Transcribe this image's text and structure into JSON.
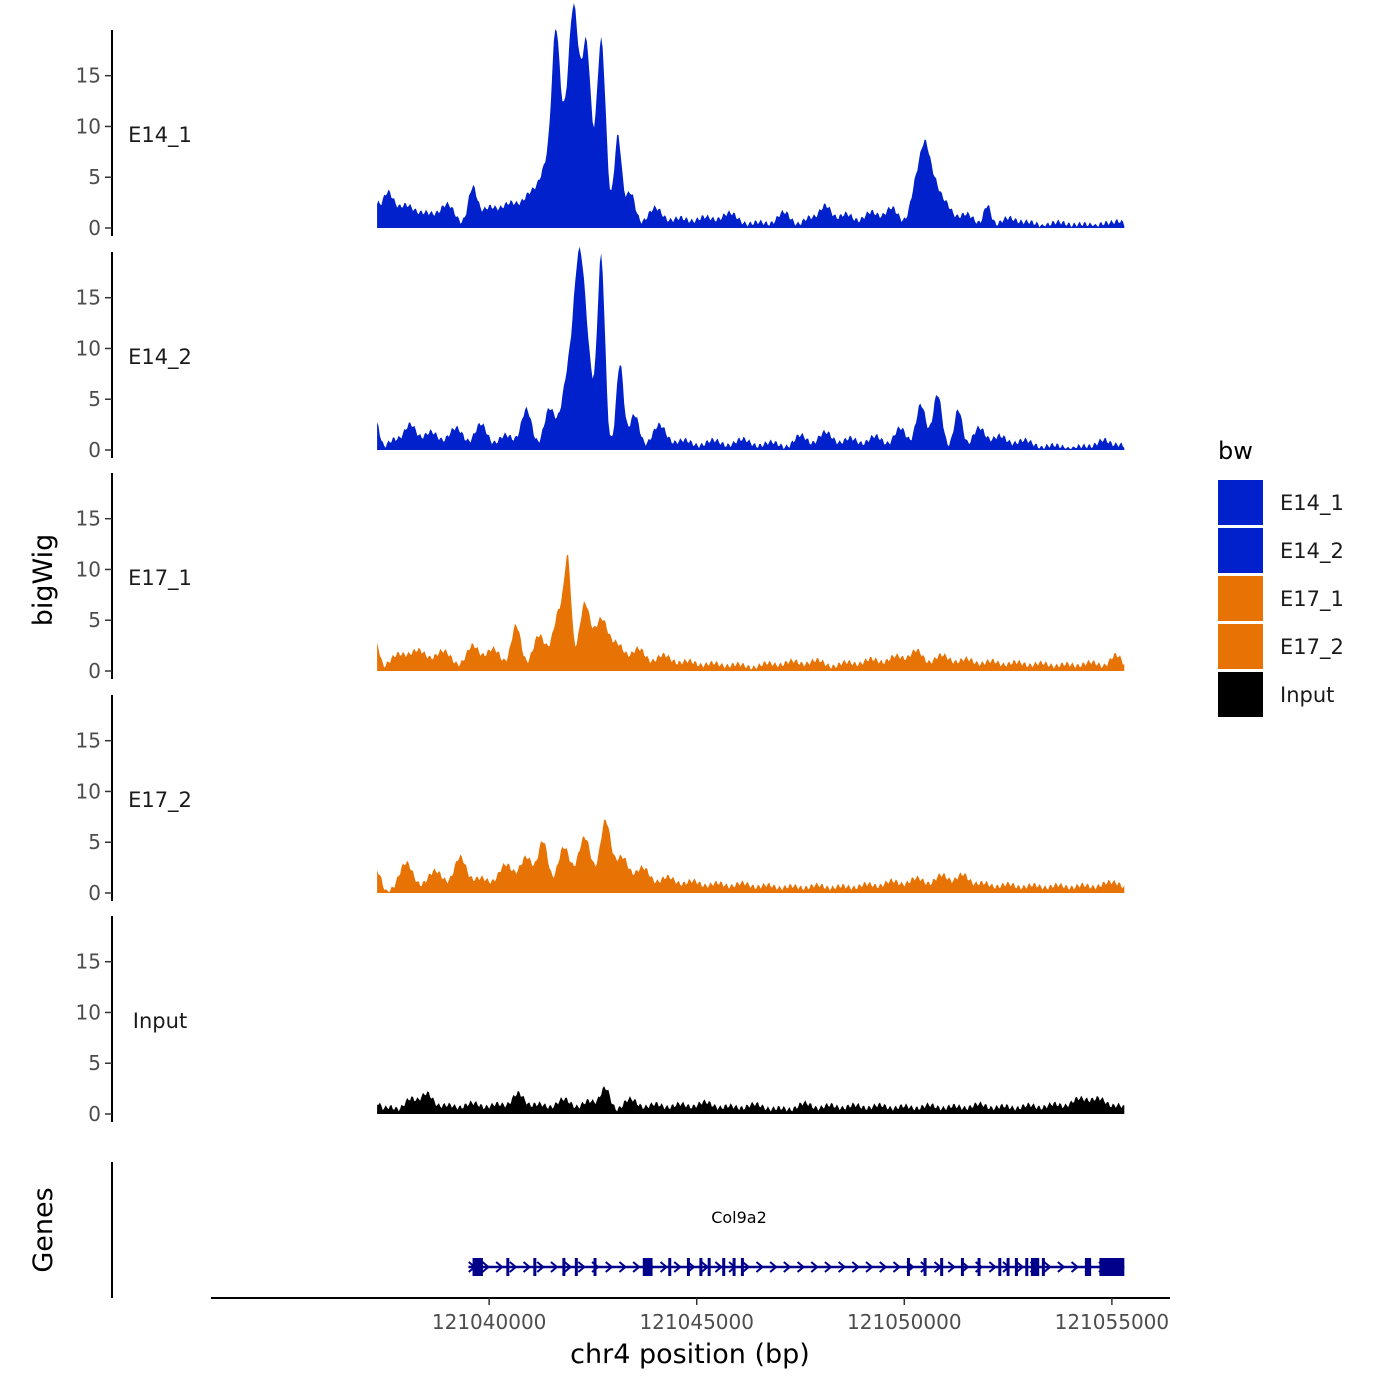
{
  "chart_data": {
    "type": "area",
    "ylabel": "bigWig",
    "xlabel": "chr4 position (bp)",
    "ylim": [
      0,
      19.5
    ],
    "xlim": [
      121033300,
      121056400
    ],
    "y_ticks": [
      "0",
      "5",
      "10",
      "15"
    ],
    "x_ticks": [
      "121040000",
      "121045000",
      "121050000",
      "121055000"
    ],
    "x_tick_values": [
      121040000,
      121045000,
      121050000,
      121055000
    ],
    "track_start": 121037300,
    "track_end": 121055300,
    "legend": {
      "title": "bw",
      "entries": [
        {
          "label": "E14_1",
          "color": "#0021CC"
        },
        {
          "label": "E14_2",
          "color": "#0021CC"
        },
        {
          "label": "E17_1",
          "color": "#E87305"
        },
        {
          "label": "E17_2",
          "color": "#E87305"
        },
        {
          "label": "Input",
          "color": "#000000"
        }
      ]
    },
    "series": [
      {
        "name": "E14_1",
        "color": "#0021CC",
        "peaks": [
          [
            121037300,
            1.5,
            60
          ],
          [
            121037550,
            3.4,
            150
          ],
          [
            121038000,
            2.2,
            200
          ],
          [
            121038500,
            1.4,
            200
          ],
          [
            121039000,
            2.3,
            180
          ],
          [
            121039600,
            3.8,
            110
          ],
          [
            121040000,
            2.0,
            200
          ],
          [
            121040500,
            2.3,
            200
          ],
          [
            121041000,
            3.2,
            200
          ],
          [
            121041400,
            5.5,
            170
          ],
          [
            121041700,
            7,
            150
          ],
          [
            121042000,
            8.5,
            160
          ],
          [
            121041600,
            11,
            90
          ],
          [
            121042050,
            13,
            120
          ],
          [
            121042350,
            17,
            110
          ],
          [
            121042700,
            18.5,
            110
          ],
          [
            121043100,
            9,
            90
          ],
          [
            121043400,
            3.5,
            120
          ],
          [
            121044000,
            2.0,
            180
          ],
          [
            121044600,
            1.0,
            200
          ],
          [
            121045200,
            1.1,
            200
          ],
          [
            121045800,
            1.5,
            200
          ],
          [
            121046500,
            0.6,
            200
          ],
          [
            121047100,
            1.6,
            160
          ],
          [
            121047700,
            1.0,
            150
          ],
          [
            121048100,
            2.2,
            150
          ],
          [
            121048600,
            1.4,
            180
          ],
          [
            121049200,
            1.6,
            180
          ],
          [
            121049700,
            2.0,
            160
          ],
          [
            121050300,
            4.5,
            140
          ],
          [
            121050500,
            5.5,
            110
          ],
          [
            121050700,
            4.0,
            140
          ],
          [
            121051000,
            2.2,
            160
          ],
          [
            121051500,
            1.4,
            180
          ],
          [
            121052000,
            2.2,
            90
          ],
          [
            121052500,
            1.0,
            180
          ],
          [
            121053000,
            0.6,
            200
          ],
          [
            121053700,
            0.6,
            200
          ],
          [
            121054300,
            0.4,
            200
          ],
          [
            121054900,
            0.5,
            200
          ],
          [
            121055200,
            0.5,
            120
          ]
        ]
      },
      {
        "name": "E14_2",
        "color": "#0021CC",
        "peaks": [
          [
            121037300,
            2.5,
            70
          ],
          [
            121037700,
            1.0,
            150
          ],
          [
            121038100,
            2.5,
            150
          ],
          [
            121038600,
            1.8,
            180
          ],
          [
            121039200,
            2.2,
            180
          ],
          [
            121039800,
            2.6,
            150
          ],
          [
            121040400,
            1.5,
            180
          ],
          [
            121040900,
            4.0,
            130
          ],
          [
            121041450,
            4.0,
            130
          ],
          [
            121041900,
            7,
            160
          ],
          [
            121042300,
            11,
            170
          ],
          [
            121042150,
            10,
            120
          ],
          [
            121042700,
            18.5,
            90
          ],
          [
            121043150,
            8.5,
            90
          ],
          [
            121043500,
            3.5,
            120
          ],
          [
            121044100,
            2.5,
            170
          ],
          [
            121044700,
            1.0,
            200
          ],
          [
            121045400,
            1.0,
            200
          ],
          [
            121046100,
            1.1,
            200
          ],
          [
            121046800,
            0.8,
            200
          ],
          [
            121047500,
            1.5,
            160
          ],
          [
            121048100,
            1.8,
            180
          ],
          [
            121048700,
            1.2,
            180
          ],
          [
            121049300,
            1.4,
            180
          ],
          [
            121049900,
            2.2,
            150
          ],
          [
            121050400,
            4.5,
            120
          ],
          [
            121050800,
            5.5,
            110
          ],
          [
            121051300,
            4.0,
            100
          ],
          [
            121051800,
            2.2,
            150
          ],
          [
            121052300,
            1.4,
            180
          ],
          [
            121052900,
            1.0,
            200
          ],
          [
            121053600,
            0.5,
            200
          ],
          [
            121054300,
            0.4,
            200
          ],
          [
            121054800,
            1.0,
            150
          ],
          [
            121055200,
            0.5,
            150
          ]
        ]
      },
      {
        "name": "E17_1",
        "color": "#E87305",
        "peaks": [
          [
            121037300,
            2.5,
            70
          ],
          [
            121037800,
            1.6,
            200
          ],
          [
            121038300,
            2.0,
            200
          ],
          [
            121038900,
            2.0,
            200
          ],
          [
            121039600,
            2.5,
            160
          ],
          [
            121040100,
            2.2,
            180
          ],
          [
            121040650,
            4.5,
            120
          ],
          [
            121041200,
            3.5,
            150
          ],
          [
            121041700,
            6.0,
            160
          ],
          [
            121041900,
            8.5,
            80
          ],
          [
            121042300,
            6.5,
            130
          ],
          [
            121042700,
            5.0,
            160
          ],
          [
            121043100,
            2.5,
            170
          ],
          [
            121043600,
            2.2,
            170
          ],
          [
            121044200,
            1.6,
            200
          ],
          [
            121044800,
            1.0,
            200
          ],
          [
            121045400,
            0.8,
            200
          ],
          [
            121046000,
            0.7,
            200
          ],
          [
            121046700,
            0.8,
            200
          ],
          [
            121047300,
            1.0,
            200
          ],
          [
            121047900,
            1.1,
            200
          ],
          [
            121048600,
            0.9,
            200
          ],
          [
            121049200,
            1.2,
            200
          ],
          [
            121049800,
            1.5,
            200
          ],
          [
            121050300,
            2.0,
            160
          ],
          [
            121050900,
            1.6,
            200
          ],
          [
            121051500,
            1.2,
            200
          ],
          [
            121052100,
            1.0,
            200
          ],
          [
            121052700,
            0.9,
            200
          ],
          [
            121053300,
            0.8,
            200
          ],
          [
            121053900,
            0.7,
            200
          ],
          [
            121054500,
            0.9,
            200
          ],
          [
            121055100,
            1.6,
            150
          ]
        ]
      },
      {
        "name": "E17_2",
        "color": "#E87305",
        "peaks": [
          [
            121037300,
            2.2,
            100
          ],
          [
            121038000,
            3.0,
            170
          ],
          [
            121038700,
            2.2,
            200
          ],
          [
            121039300,
            3.5,
            150
          ],
          [
            121039800,
            1.5,
            200
          ],
          [
            121040400,
            2.8,
            180
          ],
          [
            121040900,
            3.5,
            160
          ],
          [
            121041300,
            5.0,
            120
          ],
          [
            121041800,
            4.5,
            150
          ],
          [
            121042300,
            5.5,
            160
          ],
          [
            121042800,
            7.0,
            130
          ],
          [
            121043200,
            3.5,
            160
          ],
          [
            121043700,
            2.5,
            180
          ],
          [
            121044300,
            1.6,
            200
          ],
          [
            121044900,
            1.2,
            200
          ],
          [
            121045500,
            1.0,
            200
          ],
          [
            121046100,
            1.0,
            200
          ],
          [
            121046700,
            0.8,
            200
          ],
          [
            121047300,
            0.7,
            200
          ],
          [
            121047900,
            0.8,
            200
          ],
          [
            121048500,
            0.7,
            200
          ],
          [
            121049100,
            0.9,
            200
          ],
          [
            121049700,
            1.2,
            200
          ],
          [
            121050300,
            1.5,
            200
          ],
          [
            121050900,
            1.8,
            180
          ],
          [
            121051400,
            1.8,
            160
          ],
          [
            121051900,
            1.0,
            200
          ],
          [
            121052500,
            0.9,
            200
          ],
          [
            121053100,
            0.8,
            200
          ],
          [
            121053700,
            0.8,
            200
          ],
          [
            121054300,
            0.8,
            200
          ],
          [
            121054900,
            1.0,
            200
          ],
          [
            121055200,
            0.5,
            150
          ]
        ]
      },
      {
        "name": "Input",
        "color": "#000000",
        "peaks": [
          [
            121037300,
            1.0,
            80
          ],
          [
            121037600,
            0.7,
            150
          ],
          [
            121038100,
            1.5,
            150
          ],
          [
            121038500,
            2.0,
            150
          ],
          [
            121039000,
            0.9,
            200
          ],
          [
            121039600,
            1.1,
            200
          ],
          [
            121040200,
            1.0,
            200
          ],
          [
            121040700,
            2.0,
            150
          ],
          [
            121041200,
            1.0,
            200
          ],
          [
            121041800,
            1.5,
            180
          ],
          [
            121042400,
            1.3,
            180
          ],
          [
            121042800,
            2.5,
            120
          ],
          [
            121043400,
            1.5,
            180
          ],
          [
            121044000,
            1.0,
            200
          ],
          [
            121044600,
            1.0,
            200
          ],
          [
            121045200,
            1.2,
            200
          ],
          [
            121045800,
            0.8,
            200
          ],
          [
            121046400,
            1.0,
            200
          ],
          [
            121047000,
            0.6,
            200
          ],
          [
            121047600,
            1.1,
            180
          ],
          [
            121048200,
            0.9,
            200
          ],
          [
            121048800,
            0.9,
            200
          ],
          [
            121049400,
            0.9,
            200
          ],
          [
            121050000,
            0.8,
            200
          ],
          [
            121050600,
            0.9,
            200
          ],
          [
            121051200,
            0.8,
            200
          ],
          [
            121051800,
            1.0,
            200
          ],
          [
            121052400,
            0.8,
            200
          ],
          [
            121053000,
            0.9,
            200
          ],
          [
            121053600,
            1.0,
            200
          ],
          [
            121054200,
            1.5,
            200
          ],
          [
            121054700,
            1.5,
            200
          ],
          [
            121055200,
            0.8,
            150
          ]
        ]
      }
    ],
    "gene_track": {
      "label": "Genes",
      "gene": {
        "name": "Col9a2",
        "start": 121039500,
        "end": 121055300,
        "exons": [
          121039700,
          121040450,
          121041100,
          121041800,
          121042100,
          121042550,
          121043900,
          121044350,
          121044800,
          121045100,
          121045300,
          121045650,
          121045900,
          121046100,
          121050100,
          121050500,
          121050900,
          121051400,
          121051800,
          121052300,
          121052500,
          121052700,
          121052950,
          121053150,
          121053350,
          121054400,
          121055100
        ],
        "utr_blocks": [
          [
            121039600,
            121039850
          ],
          [
            121043700,
            121043900
          ],
          [
            121053050,
            121053250
          ],
          [
            121054350,
            121054500
          ],
          [
            121054700,
            121055300
          ]
        ]
      }
    }
  }
}
